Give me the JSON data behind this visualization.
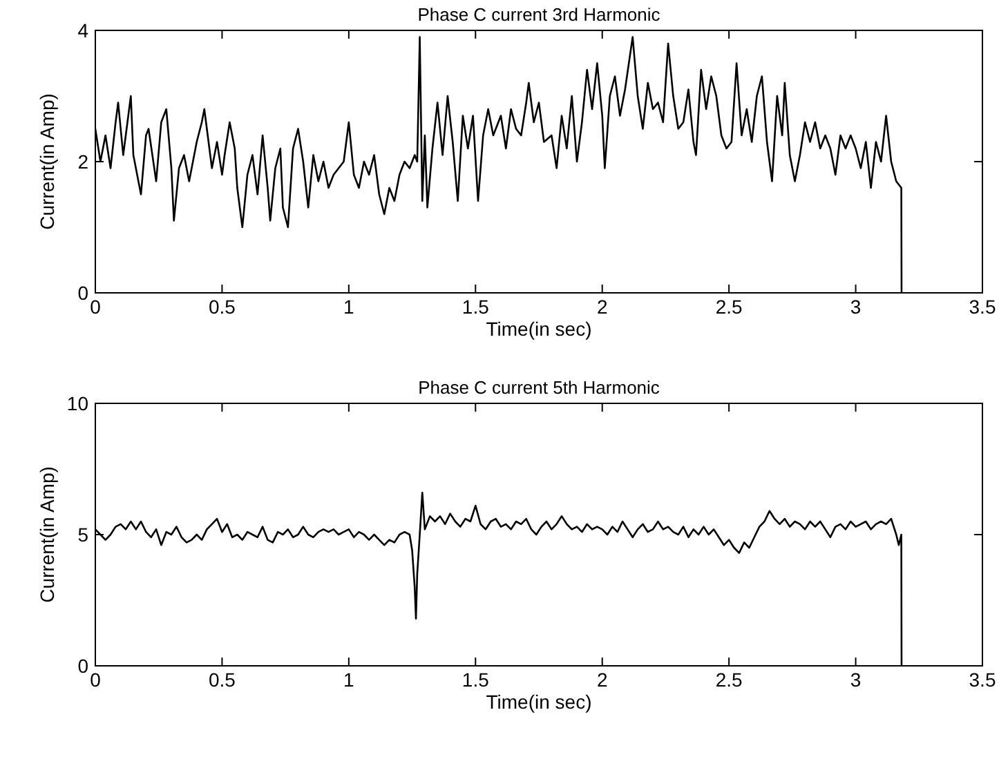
{
  "chart_data": [
    {
      "type": "line",
      "title": "Phase C current 3rd Harmonic",
      "xlabel": "Time(in sec)",
      "ylabel": "Current(in Amp)",
      "xlim": [
        0,
        3.5
      ],
      "xticks": [
        0,
        0.5,
        1,
        1.5,
        2,
        2.5,
        3,
        3.5
      ],
      "ylim": [
        0,
        4
      ],
      "yticks": [
        0,
        2,
        4
      ],
      "x": [
        0,
        0.02,
        0.04,
        0.06,
        0.08,
        0.09,
        0.11,
        0.14,
        0.15,
        0.18,
        0.2,
        0.21,
        0.24,
        0.26,
        0.28,
        0.3,
        0.31,
        0.33,
        0.35,
        0.37,
        0.4,
        0.42,
        0.43,
        0.46,
        0.48,
        0.5,
        0.51,
        0.53,
        0.55,
        0.56,
        0.58,
        0.6,
        0.62,
        0.64,
        0.66,
        0.68,
        0.69,
        0.71,
        0.73,
        0.74,
        0.76,
        0.78,
        0.8,
        0.82,
        0.84,
        0.86,
        0.88,
        0.9,
        0.92,
        0.94,
        0.96,
        0.98,
        1.0,
        1.02,
        1.04,
        1.06,
        1.08,
        1.1,
        1.12,
        1.14,
        1.16,
        1.18,
        1.2,
        1.22,
        1.24,
        1.26,
        1.27,
        1.28,
        1.29,
        1.3,
        1.31,
        1.33,
        1.35,
        1.37,
        1.39,
        1.41,
        1.43,
        1.45,
        1.47,
        1.49,
        1.51,
        1.53,
        1.55,
        1.57,
        1.6,
        1.62,
        1.64,
        1.66,
        1.68,
        1.7,
        1.71,
        1.73,
        1.75,
        1.77,
        1.8,
        1.82,
        1.84,
        1.86,
        1.88,
        1.9,
        1.92,
        1.94,
        1.96,
        1.98,
        2.0,
        2.01,
        2.03,
        2.05,
        2.07,
        2.09,
        2.12,
        2.14,
        2.16,
        2.18,
        2.2,
        2.22,
        2.24,
        2.26,
        2.28,
        2.3,
        2.32,
        2.34,
        2.36,
        2.37,
        2.39,
        2.41,
        2.43,
        2.45,
        2.47,
        2.49,
        2.51,
        2.53,
        2.55,
        2.57,
        2.59,
        2.61,
        2.63,
        2.65,
        2.67,
        2.69,
        2.71,
        2.72,
        2.74,
        2.76,
        2.78,
        2.8,
        2.82,
        2.84,
        2.86,
        2.88,
        2.9,
        2.92,
        2.94,
        2.96,
        2.98,
        3.0,
        3.02,
        3.04,
        3.06,
        3.08,
        3.1,
        3.12,
        3.14,
        3.16,
        3.18,
        3.181
      ],
      "series": [
        {
          "color": "#000000",
          "values": [
            2.5,
            2.0,
            2.4,
            1.9,
            2.6,
            2.9,
            2.1,
            3.0,
            2.1,
            1.5,
            2.4,
            2.5,
            1.7,
            2.6,
            2.8,
            1.9,
            1.1,
            1.9,
            2.1,
            1.7,
            2.3,
            2.6,
            2.8,
            1.9,
            2.3,
            1.8,
            2.1,
            2.6,
            2.2,
            1.6,
            1.0,
            1.8,
            2.1,
            1.5,
            2.4,
            1.6,
            1.1,
            1.9,
            2.2,
            1.3,
            1.0,
            2.2,
            2.5,
            2.0,
            1.3,
            2.1,
            1.7,
            2.0,
            1.6,
            1.8,
            1.9,
            2.0,
            2.6,
            1.8,
            1.6,
            2.0,
            1.8,
            2.1,
            1.5,
            1.2,
            1.6,
            1.4,
            1.8,
            2.0,
            1.9,
            2.1,
            2.0,
            3.9,
            1.4,
            2.4,
            1.3,
            2.2,
            2.9,
            2.1,
            3.0,
            2.3,
            1.4,
            2.7,
            2.2,
            2.7,
            1.4,
            2.4,
            2.8,
            2.4,
            2.7,
            2.2,
            2.8,
            2.5,
            2.4,
            2.9,
            3.2,
            2.6,
            2.9,
            2.3,
            2.4,
            1.9,
            2.7,
            2.2,
            3.0,
            2.0,
            2.6,
            3.4,
            2.8,
            3.5,
            2.7,
            1.9,
            3.0,
            3.3,
            2.7,
            3.1,
            3.9,
            3.0,
            2.5,
            3.2,
            2.8,
            2.9,
            2.6,
            3.8,
            3.0,
            2.5,
            2.6,
            3.1,
            2.3,
            2.1,
            3.4,
            2.8,
            3.3,
            3.0,
            2.4,
            2.2,
            2.3,
            3.5,
            2.4,
            2.8,
            2.3,
            3.0,
            3.3,
            2.3,
            1.7,
            3.0,
            2.4,
            3.2,
            2.1,
            1.7,
            2.1,
            2.6,
            2.3,
            2.6,
            2.2,
            2.4,
            2.2,
            1.8,
            2.4,
            2.2,
            2.4,
            2.2,
            1.9,
            2.3,
            1.6,
            2.3,
            2.0,
            2.7,
            2.0,
            1.7,
            1.6,
            0
          ]
        }
      ]
    },
    {
      "type": "line",
      "title": "Phase C current 5th Harmonic",
      "xlabel": "Time(in sec)",
      "ylabel": "Current(in Amp)",
      "xlim": [
        0,
        3.5
      ],
      "xticks": [
        0,
        0.5,
        1,
        1.5,
        2,
        2.5,
        3,
        3.5
      ],
      "ylim": [
        0,
        10
      ],
      "yticks": [
        0,
        5,
        10
      ],
      "x": [
        0,
        0.02,
        0.04,
        0.06,
        0.08,
        0.1,
        0.12,
        0.14,
        0.16,
        0.18,
        0.2,
        0.22,
        0.24,
        0.26,
        0.28,
        0.3,
        0.32,
        0.34,
        0.36,
        0.38,
        0.4,
        0.42,
        0.44,
        0.46,
        0.48,
        0.5,
        0.52,
        0.54,
        0.56,
        0.58,
        0.6,
        0.62,
        0.64,
        0.66,
        0.68,
        0.7,
        0.72,
        0.74,
        0.76,
        0.78,
        0.8,
        0.82,
        0.84,
        0.86,
        0.88,
        0.9,
        0.92,
        0.94,
        0.96,
        0.98,
        1.0,
        1.02,
        1.04,
        1.06,
        1.08,
        1.1,
        1.12,
        1.14,
        1.16,
        1.18,
        1.2,
        1.22,
        1.24,
        1.25,
        1.26,
        1.265,
        1.27,
        1.28,
        1.29,
        1.3,
        1.32,
        1.34,
        1.36,
        1.38,
        1.4,
        1.42,
        1.44,
        1.46,
        1.48,
        1.5,
        1.52,
        1.54,
        1.56,
        1.58,
        1.6,
        1.62,
        1.64,
        1.66,
        1.68,
        1.7,
        1.72,
        1.74,
        1.76,
        1.78,
        1.8,
        1.82,
        1.84,
        1.86,
        1.88,
        1.9,
        1.92,
        1.94,
        1.96,
        1.98,
        2.0,
        2.02,
        2.04,
        2.06,
        2.08,
        2.1,
        2.12,
        2.14,
        2.16,
        2.18,
        2.2,
        2.22,
        2.24,
        2.26,
        2.28,
        2.3,
        2.32,
        2.34,
        2.36,
        2.38,
        2.4,
        2.42,
        2.44,
        2.46,
        2.48,
        2.5,
        2.52,
        2.54,
        2.56,
        2.58,
        2.6,
        2.62,
        2.64,
        2.66,
        2.68,
        2.7,
        2.72,
        2.74,
        2.76,
        2.78,
        2.8,
        2.82,
        2.84,
        2.86,
        2.88,
        2.9,
        2.92,
        2.94,
        2.96,
        2.98,
        3.0,
        3.02,
        3.04,
        3.06,
        3.08,
        3.1,
        3.12,
        3.14,
        3.16,
        3.17,
        3.18,
        3.181
      ],
      "series": [
        {
          "color": "#000000",
          "values": [
            5.2,
            5.0,
            4.8,
            5.0,
            5.3,
            5.4,
            5.2,
            5.5,
            5.2,
            5.5,
            5.1,
            4.9,
            5.2,
            4.6,
            5.1,
            5.0,
            5.3,
            4.9,
            4.7,
            4.8,
            5.0,
            4.8,
            5.2,
            5.4,
            5.6,
            5.1,
            5.4,
            4.9,
            5.0,
            4.8,
            5.1,
            5.0,
            4.9,
            5.3,
            4.8,
            4.7,
            5.1,
            5.0,
            5.2,
            4.9,
            5.0,
            5.3,
            5.0,
            4.9,
            5.1,
            5.2,
            5.1,
            5.2,
            5.0,
            5.1,
            5.2,
            4.9,
            5.1,
            5.0,
            4.8,
            5.0,
            4.8,
            4.6,
            4.8,
            4.7,
            5.0,
            5.1,
            5.0,
            4.4,
            3.0,
            1.8,
            3.5,
            5.0,
            6.6,
            5.2,
            5.7,
            5.5,
            5.7,
            5.4,
            5.8,
            5.5,
            5.3,
            5.6,
            5.5,
            6.1,
            5.4,
            5.2,
            5.5,
            5.6,
            5.3,
            5.4,
            5.2,
            5.5,
            5.4,
            5.6,
            5.2,
            5.0,
            5.3,
            5.5,
            5.2,
            5.4,
            5.7,
            5.4,
            5.2,
            5.3,
            5.1,
            5.4,
            5.2,
            5.3,
            5.2,
            5.0,
            5.3,
            5.1,
            5.5,
            5.2,
            4.9,
            5.2,
            5.4,
            5.1,
            5.2,
            5.5,
            5.2,
            5.3,
            5.1,
            5.0,
            5.3,
            4.9,
            5.2,
            5.0,
            5.3,
            5.0,
            5.2,
            4.9,
            4.6,
            4.8,
            4.5,
            4.3,
            4.7,
            4.5,
            4.9,
            5.3,
            5.5,
            5.9,
            5.6,
            5.4,
            5.6,
            5.3,
            5.5,
            5.4,
            5.2,
            5.5,
            5.3,
            5.5,
            5.2,
            4.9,
            5.3,
            5.4,
            5.2,
            5.5,
            5.3,
            5.4,
            5.5,
            5.2,
            5.4,
            5.5,
            5.4,
            5.6,
            5.0,
            4.6,
            5.0,
            0
          ]
        }
      ]
    }
  ]
}
